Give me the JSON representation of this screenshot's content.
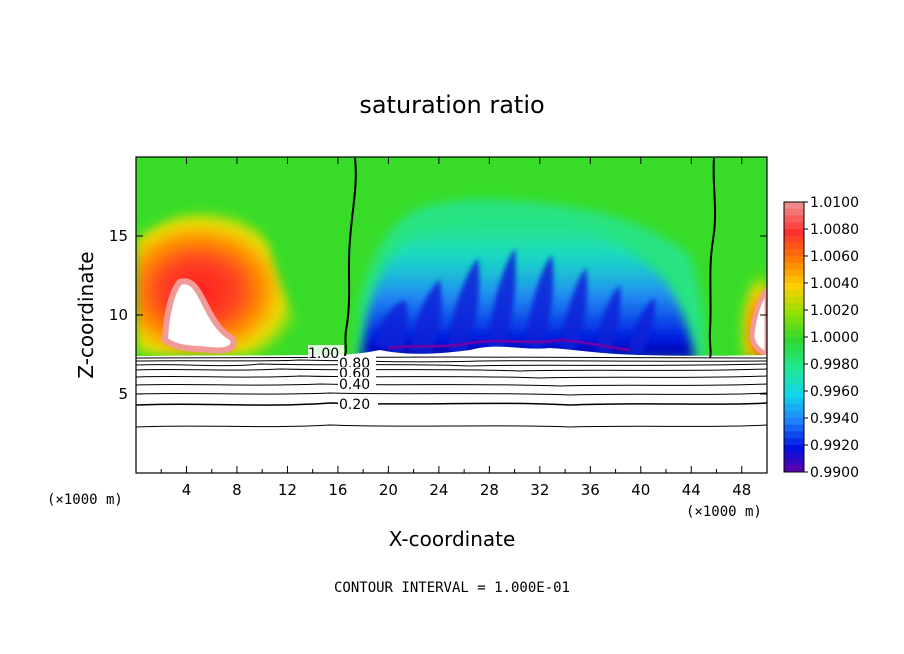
{
  "chart_data": {
    "type": "heatmap",
    "title": "saturation ratio",
    "xlabel": "X-coordinate",
    "ylabel": "Z-coordinate",
    "x_unit_left": "(×1000 m)",
    "x_unit_right": "(×1000 m)",
    "xlim": [
      0,
      50
    ],
    "ylim": [
      0,
      20
    ],
    "x_ticks": [
      4,
      8,
      12,
      16,
      20,
      24,
      28,
      32,
      36,
      40,
      44,
      48
    ],
    "y_ticks": [
      5,
      10,
      15
    ],
    "colorbar": {
      "levels": [
        "1.0100",
        "1.0080",
        "1.0060",
        "1.0040",
        "1.0020",
        "1.0000",
        "0.9980",
        "0.9960",
        "0.9940",
        "0.9920",
        "0.9900"
      ],
      "colors": [
        "#f08a8a",
        "#ff3030",
        "#ff7a00",
        "#ffd000",
        "#90e000",
        "#30d830",
        "#20e890",
        "#10d8e8",
        "#2080ff",
        "#0010e0",
        "#7000a0"
      ]
    },
    "contour_labels": [
      {
        "text": "1.00",
        "x": 15.2,
        "y": 7.4
      },
      {
        "text": "0.80",
        "x": 17.5,
        "y": 6.9
      },
      {
        "text": "0.60",
        "x": 17.5,
        "y": 6.2
      },
      {
        "text": "0.40",
        "x": 17.5,
        "y": 5.5
      },
      {
        "text": "0.20",
        "x": 17.5,
        "y": 4.1
      }
    ],
    "contour_interval_text": "CONTOUR INTERVAL = 1.000E-01"
  }
}
